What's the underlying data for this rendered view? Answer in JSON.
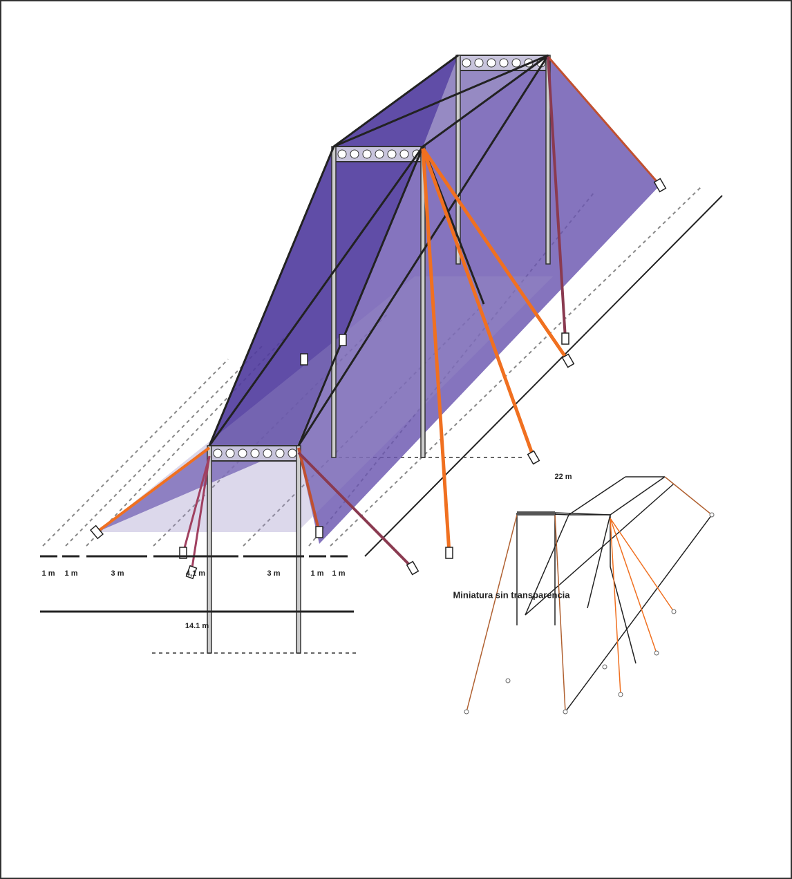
{
  "dimensions": [
    "1 m",
    "1 m",
    "3 m",
    "4,1 m",
    "3 m",
    "1 m",
    "1 m"
  ],
  "total_width": "14.1 m",
  "length": "22 m",
  "caption": "Miniatura sin transparencia"
}
